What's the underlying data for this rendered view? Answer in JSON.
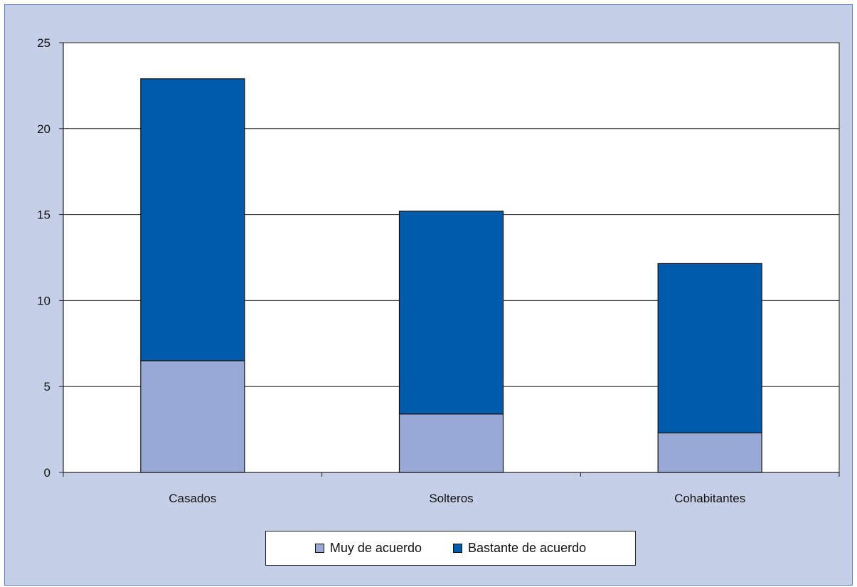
{
  "colors": {
    "series1": "#99a9d6",
    "series2": "#005bab",
    "background": "#c5d0e8"
  },
  "chart_data": {
    "type": "bar",
    "stacked": true,
    "categories": [
      "Casados",
      "Solteros",
      "Cohabitantes"
    ],
    "series": [
      {
        "name": "Muy de acuerdo",
        "values": [
          6.5,
          3.4,
          2.3
        ]
      },
      {
        "name": "Bastante de acuerdo",
        "values": [
          16.4,
          11.8,
          9.85
        ]
      }
    ],
    "yticks": [
      "0",
      "5",
      "10",
      "15",
      "20",
      "25"
    ],
    "ylim": [
      0,
      25
    ],
    "title": "",
    "xlabel": "",
    "ylabel": "",
    "grid": true,
    "legend_position": "bottom"
  }
}
